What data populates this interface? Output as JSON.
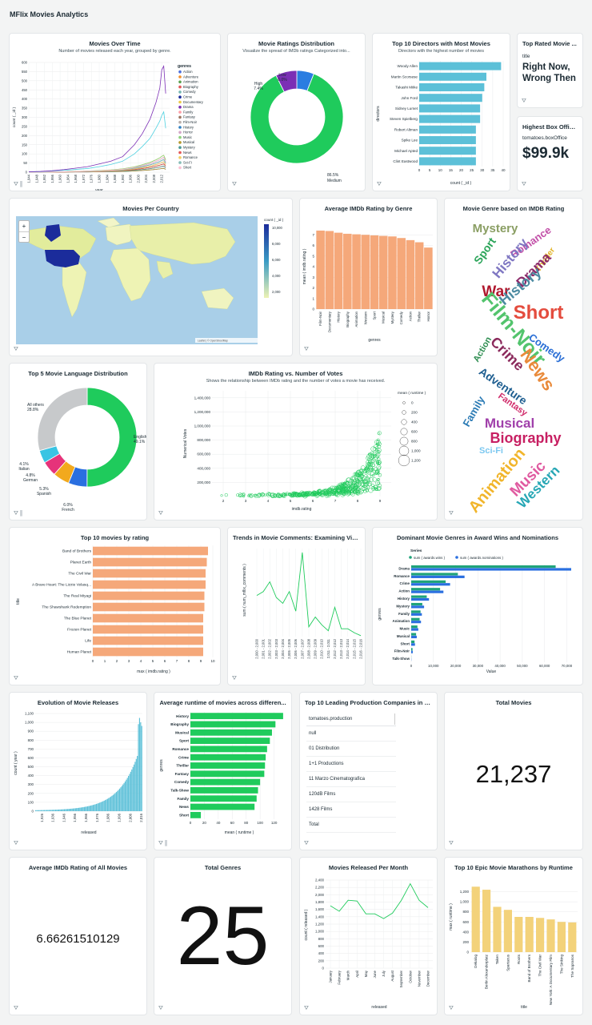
{
  "app": {
    "title": "MFlix Movies Analytics"
  },
  "icons": {
    "filter": "filter-icon",
    "chart": "chart-icon",
    "zoom_in": "plus-icon",
    "zoom_out": "minus-icon"
  },
  "colors": {
    "green": "#1fcb5c",
    "orange": "#f5a87a",
    "blue_bar": "#5cc0d8",
    "purple": "#7b2fb5",
    "dark_blue": "#1b2c9b",
    "yellow": "#f3d27a",
    "teal": "#1f8ea3"
  },
  "cards": {
    "movies_over_time": {
      "title": "Movies Over Time",
      "subtitle": "Number of movies released each year, grouped by genre.",
      "chart_data": {
        "type": "line",
        "ylabel": "count ( _id )",
        "xlabel": "year",
        "ylim": [
          0,
          600
        ],
        "yticks": [
          "0",
          "50",
          "100",
          "150",
          "200",
          "250",
          "300",
          "350",
          "400",
          "450",
          "500",
          "550",
          "600"
        ],
        "xticks": [
          "1,944",
          "1,948",
          "1,952",
          "1,956",
          "1,960",
          "1,964",
          "1,968",
          "1,972",
          "1,976",
          "1,980",
          "1,984",
          "1,988",
          "1,992",
          "1,996",
          "2,000",
          "2,004",
          "2,008",
          "2,012"
        ],
        "legend_title": "genres",
        "legend": [
          "Action",
          "Adventure",
          "Animation",
          "Biography",
          "Comedy",
          "Crime",
          "Documentary",
          "Drama",
          "Family",
          "Fantasy",
          "Film-Noir",
          "History",
          "Horror",
          "Music",
          "Musical",
          "Mystery",
          "News",
          "Romance",
          "Sci-Fi",
          "Short"
        ],
        "legend_colors": [
          "#4c6edb",
          "#f28e2b",
          "#59a14f",
          "#e15759",
          "#76b7b2",
          "#1b2c9b",
          "#edc948",
          "#7b2fb5",
          "#ff9da7",
          "#9c755f",
          "#bab0ac",
          "#2f7fc1",
          "#d4a6c8",
          "#8cd17d",
          "#b6992d",
          "#499894",
          "#e45756",
          "#f1ce63",
          "#86bcb6",
          "#fabfd2"
        ],
        "x": [
          1944,
          1950,
          1956,
          1962,
          1968,
          1974,
          1980,
          1986,
          1992,
          1998,
          2002,
          2006,
          2009,
          2011,
          2012,
          2013,
          2014
        ],
        "series_drama": [
          2,
          4,
          8,
          14,
          22,
          30,
          45,
          60,
          85,
          150,
          210,
          290,
          380,
          460,
          560,
          580,
          430
        ],
        "series_comedy": [
          1,
          3,
          6,
          10,
          15,
          20,
          30,
          42,
          60,
          100,
          140,
          185,
          240,
          280,
          310,
          330,
          240
        ],
        "series_other": [
          1,
          2,
          3,
          5,
          8,
          11,
          16,
          22,
          32,
          52,
          72,
          96,
          120,
          140,
          155,
          165,
          120
        ]
      }
    },
    "ratings_distribution": {
      "title": "Movie Ratings Distribution",
      "subtitle": "Visualize the spread of IMDb ratings Categorized into...",
      "chart_data": {
        "type": "pie",
        "slices": [
          {
            "label": "Medium",
            "pct_label": "86.5%",
            "value": 86.5,
            "color": "#1fcb5c"
          },
          {
            "label": "High",
            "pct_label": "7.4%",
            "value": 7.4,
            "color": "#7b2fb5"
          },
          {
            "label": "Low",
            "pct_label": "6.0%",
            "value": 6.0,
            "color": "#2a7de1"
          }
        ]
      }
    },
    "top_directors": {
      "title": "Top 10 Directors with Most Movies",
      "subtitle": "Directors with the highest number of movies",
      "chart_data": {
        "type": "bar",
        "ylabel": "directors",
        "xlabel": "count ( _id )",
        "categories": [
          "Woody Allen",
          "Martin Scorsese",
          "Takashi Miike",
          "John Ford",
          "Sidney Lumet",
          "Steven Spielberg",
          "Robert Altman",
          "Spike Lee",
          "Michael Apted",
          "Clint Eastwood"
        ],
        "values": [
          39,
          32,
          31,
          30,
          29,
          29,
          27,
          27,
          27,
          27
        ],
        "xlim": [
          0,
          40
        ],
        "xticks": [
          "0",
          "5",
          "10",
          "15",
          "20",
          "25",
          "30",
          "35",
          "40"
        ]
      }
    },
    "top_rated_movie": {
      "title": "Top Rated Movie ...",
      "label": "title",
      "value": "Right Now, Wrong Then"
    },
    "highest_box_office": {
      "title": "Highest Box Office...",
      "label": "tomatoes.boxOffice",
      "value": "$99.9k"
    },
    "movies_per_country": {
      "title": "Movies Per Country",
      "legend_title": "count ( _id )",
      "legend_ticks": [
        "10,000",
        "8,000",
        "6,000",
        "4,000",
        "2,000"
      ],
      "zoom_in": "+",
      "zoom_out": "−",
      "attribution": "Leaflet | © OpenStreetMap"
    },
    "avg_rating_by_genre": {
      "title": "Average IMDb Rating by Genre",
      "chart_data": {
        "type": "bar",
        "ylabel": "mean ( imdb.rating )",
        "xlabel": "genres",
        "categories": [
          "Film-Noir",
          "Documentary",
          "History",
          "Biography",
          "Animation",
          "Western",
          "Sport",
          "Musical",
          "Mystery",
          "Comedy",
          "Action",
          "Thriller",
          "Horror"
        ],
        "values": [
          7.4,
          7.36,
          7.2,
          7.1,
          7.05,
          7.0,
          6.95,
          6.9,
          6.85,
          6.7,
          6.5,
          6.3,
          5.8
        ],
        "ylim": [
          0,
          8
        ],
        "yticks": [
          "0",
          "1",
          "2",
          "3",
          "4",
          "5",
          "6",
          "7"
        ]
      }
    },
    "genre_wordcloud": {
      "title": "Movie Genre based on IMDB Rating",
      "words": [
        "Mystery",
        "Romance",
        "Sport",
        "History",
        "Thriller",
        "Drama",
        "War",
        "History",
        "Short",
        "Film-Noir",
        "Comedy",
        "Action",
        "Crime",
        "News",
        "Adventure",
        "Fantasy",
        "Family",
        "Musical",
        "Biography",
        "Sci-Fi",
        "Animation",
        "Music",
        "Western"
      ]
    },
    "top_languages": {
      "title": "Top 5 Movie Language Distribution",
      "chart_data": {
        "type": "pie",
        "slices": [
          {
            "label": "English",
            "pct_label": "49.1%",
            "value": 49.1,
            "color": "#1fcb5c"
          },
          {
            "label": "French",
            "pct_label": "6.0%",
            "value": 6.0,
            "color": "#2a6fe0"
          },
          {
            "label": "Spanish",
            "pct_label": "5.3%",
            "value": 5.3,
            "color": "#f2a91d"
          },
          {
            "label": "German",
            "pct_label": "4.8%",
            "value": 4.8,
            "color": "#e6337a"
          },
          {
            "label": "Italian",
            "pct_label": "4.1%",
            "value": 4.1,
            "color": "#39c4e3"
          },
          {
            "label": "All others",
            "pct_label": "28.8%",
            "value": 28.8,
            "color": "#c7c9cb"
          }
        ]
      }
    },
    "rating_vs_votes": {
      "title": "IMDb Rating vs. Number of Votes",
      "subtitle": "Shows the relationship between IMDb rating and the number of votes a movie has received.",
      "chart_data": {
        "type": "scatter",
        "ylabel": "Numerical Votes",
        "xlabel": "imdb.rating",
        "xlim": [
          1.5,
          9.5
        ],
        "ylim": [
          0,
          1500000
        ],
        "xticks": [
          "2",
          "3",
          "4",
          "5",
          "6",
          "7",
          "8",
          "9"
        ],
        "yticks": [
          "200,000",
          "400,000",
          "600,000",
          "800,000",
          "1,000,000",
          "1,200,000",
          "1,400,000"
        ],
        "legend_title": "mean ( runtime )",
        "legend": [
          "0",
          "200",
          "400",
          "600",
          "800",
          "1,000",
          "1,200"
        ]
      }
    },
    "top_movies_by_rating": {
      "title": "Top 10 movies by rating",
      "chart_data": {
        "type": "bar",
        "ylabel": "title",
        "xlabel": "max ( imdb.rating )",
        "categories": [
          "Band of Brothers",
          "Planet Earth",
          "The Civil War",
          "A Brave Heart: The Lizzie Velasq...",
          "The Real Miyagi",
          "The Shawshank Redemption",
          "The Blue Planet",
          "Frozen Planet",
          "Life",
          "Human Planet"
        ],
        "values": [
          9.6,
          9.5,
          9.4,
          9.4,
          9.3,
          9.3,
          9.2,
          9.2,
          9.2,
          9.2
        ],
        "xlim": [
          0,
          10
        ],
        "xticks": [
          "0",
          "1",
          "2",
          "3",
          "4",
          "5",
          "6",
          "7",
          "8",
          "9",
          "10"
        ]
      }
    },
    "movie_comments_trend": {
      "title": "Trends in Movie Comments: Examining Vie...",
      "chart_data": {
        "type": "line",
        "ylabel": "sum ( num_mflix_comments )",
        "xlabel": "year",
        "categories": [
          "2,000 - 2,000",
          "2,001 - 2,001",
          "2,002 - 2,002",
          "2,003 - 2,003",
          "2,004 - 2,004",
          "2,005 - 2,005",
          "2,006 - 2,006",
          "2,007 - 2,007",
          "2,008 - 2,008",
          "2,009 - 2,009",
          "2,010 - 2,010",
          "2,011 - 2,011",
          "2,012 - 2,012",
          "2,013 - 2,013",
          "2,014 - 2,014",
          "2,015 - 2,015",
          "2,016 - 2,016"
        ],
        "values": [
          2100,
          2300,
          2800,
          2000,
          1700,
          2300,
          1300,
          4300,
          500,
          1000,
          600,
          300,
          1500,
          400,
          400,
          200,
          50
        ]
      }
    },
    "award_genres": {
      "title": "Dominant Movie Genres in Award Wins and Nominations",
      "chart_data": {
        "type": "bar",
        "legend_title": "Series",
        "series": [
          {
            "name": "sum ( awards.wins )",
            "color": "#1fa37a"
          },
          {
            "name": "sum ( awards.nominations )",
            "color": "#2a6fe0"
          }
        ],
        "ylabel": "genres",
        "xlabel": "Value",
        "categories": [
          "Drama",
          "Romance",
          "Crime",
          "Action",
          "History",
          "Mystery",
          "Family",
          "Animation",
          "Music",
          "Musical",
          "Short",
          "Film-Noir",
          "Talk-Show"
        ],
        "wins": [
          65000,
          21000,
          15500,
          13000,
          7000,
          5000,
          4200,
          3800,
          2800,
          2200,
          1500,
          600,
          50
        ],
        "nominations": [
          72000,
          24000,
          17500,
          14500,
          8000,
          5800,
          4800,
          4400,
          3200,
          2500,
          1700,
          700,
          80
        ],
        "xlim": [
          0,
          70000
        ],
        "xticks": [
          "0",
          "10,000",
          "20,000",
          "30,000",
          "40,000",
          "50,000",
          "60,000",
          "70,000"
        ]
      }
    },
    "evolution_releases": {
      "title": "Evolution of Movie Releases",
      "chart_data": {
        "type": "bar",
        "ylabel": "count ( year )",
        "xlabel": "released",
        "ylim": [
          0,
          1100
        ],
        "yticks": [
          "0",
          "100",
          "200",
          "300",
          "400",
          "500",
          "600",
          "700",
          "800",
          "900",
          "1,000",
          "1,100"
        ],
        "xticks": [
          "1,926",
          "1,936",
          "1,946",
          "1,956",
          "1,966",
          "1,976",
          "1,986",
          "1,996",
          "2,006",
          "2,016"
        ]
      }
    },
    "avg_runtime_genres": {
      "title": "Average runtime of movies across differen...",
      "chart_data": {
        "type": "bar",
        "ylabel": "genres",
        "xlabel": "mean ( runtime )",
        "categories": [
          "History",
          "Biography",
          "Musical",
          "Sport",
          "Romance",
          "Crime",
          "Thriller",
          "Fantasy",
          "Comedy",
          "Talk-Show",
          "Family",
          "News",
          "Short"
        ],
        "values": [
          133,
          122,
          117,
          114,
          110,
          108,
          107,
          106,
          100,
          97,
          95,
          92,
          15
        ],
        "xlim": [
          0,
          140
        ],
        "xticks": [
          "0",
          "20",
          "40",
          "60",
          "80",
          "100",
          "120"
        ]
      }
    },
    "production_companies": {
      "title": "Top 10 Leading Production Companies in Fi...",
      "header": "tomatoes.production",
      "rows": [
        "null",
        "01 Distribution",
        "1+1 Productions",
        "11 Marzo Cinematografica",
        "120dB Films",
        "1428 Films",
        "Total"
      ]
    },
    "total_movies": {
      "title": "Total Movies",
      "value": "21,237"
    },
    "avg_imdb_rating": {
      "title": "Average IMDb Rating of All Movies",
      "value": "6.66261510129"
    },
    "total_genres": {
      "title": "Total Genres",
      "value": "25"
    },
    "movies_per_month": {
      "title": "Movies Released Per Month",
      "chart_data": {
        "type": "line",
        "ylabel": "count ( released )",
        "xlabel": "released",
        "categories": [
          "January",
          "February",
          "March",
          "April",
          "May",
          "June",
          "July",
          "August",
          "September",
          "October",
          "November",
          "December"
        ],
        "values": [
          1700,
          1550,
          1850,
          1830,
          1480,
          1480,
          1350,
          1500,
          1850,
          2300,
          1850,
          1650
        ],
        "ylim": [
          0,
          2400
        ],
        "yticks": [
          "0",
          "200",
          "400",
          "600",
          "800",
          "1,000",
          "1,200",
          "1,400",
          "1,600",
          "1,800",
          "2,000",
          "2,200",
          "2,400"
        ]
      }
    },
    "epic_marathons": {
      "title": "Top 10 Epic Movie Marathons by Runtime",
      "chart_data": {
        "type": "bar",
        "ylabel": "max ( runtime )",
        "xlabel": "title",
        "categories": [
          "Dekalog",
          "Berlin Alexanderplatz",
          "Taken",
          "Spartacus",
          "Roots",
          "Band of Brothers",
          "The Civil War",
          "New York: A Documentary Film",
          "The Sinking",
          "The Sopranos"
        ],
        "values": [
          1300,
          1240,
          900,
          840,
          700,
          700,
          680,
          650,
          600,
          590
        ],
        "ylim": [
          0,
          1400
        ],
        "yticks": [
          "0",
          "200",
          "400",
          "600",
          "800",
          "1,000",
          "1,200"
        ]
      }
    }
  }
}
